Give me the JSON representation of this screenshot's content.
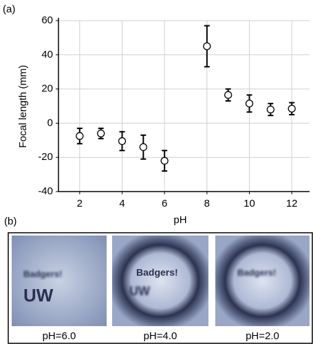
{
  "chart_data": {
    "type": "scatter",
    "panel_label": "(a)",
    "x_label": "pH",
    "y_label": "Focal length (mm)",
    "x": [
      2,
      3,
      4,
      5,
      6,
      8,
      9,
      10,
      11,
      12
    ],
    "values": [
      -7.5,
      -6,
      -10.5,
      -14,
      -22,
      45,
      16.5,
      11.5,
      8,
      8.5
    ],
    "errors": [
      4.5,
      3,
      5.5,
      7,
      6,
      12,
      3.5,
      5,
      3.5,
      3.5
    ],
    "xlim": [
      1,
      13
    ],
    "xticks": [
      2,
      4,
      6,
      8,
      10,
      12
    ],
    "ylim": [
      -40,
      60
    ],
    "yticks": [
      -40,
      -20,
      0,
      20,
      40,
      60
    ],
    "grid": true,
    "color": "#000000"
  },
  "panel_b": {
    "label": "(b)",
    "images": [
      {
        "caption": "pH=6.0",
        "texts": [
          "UW",
          "Badgers!"
        ]
      },
      {
        "caption": "pH=4.0",
        "texts": [
          "Badgers!",
          "UW"
        ]
      },
      {
        "caption": "pH=2.0",
        "texts": [
          "Badgers!"
        ]
      }
    ]
  }
}
